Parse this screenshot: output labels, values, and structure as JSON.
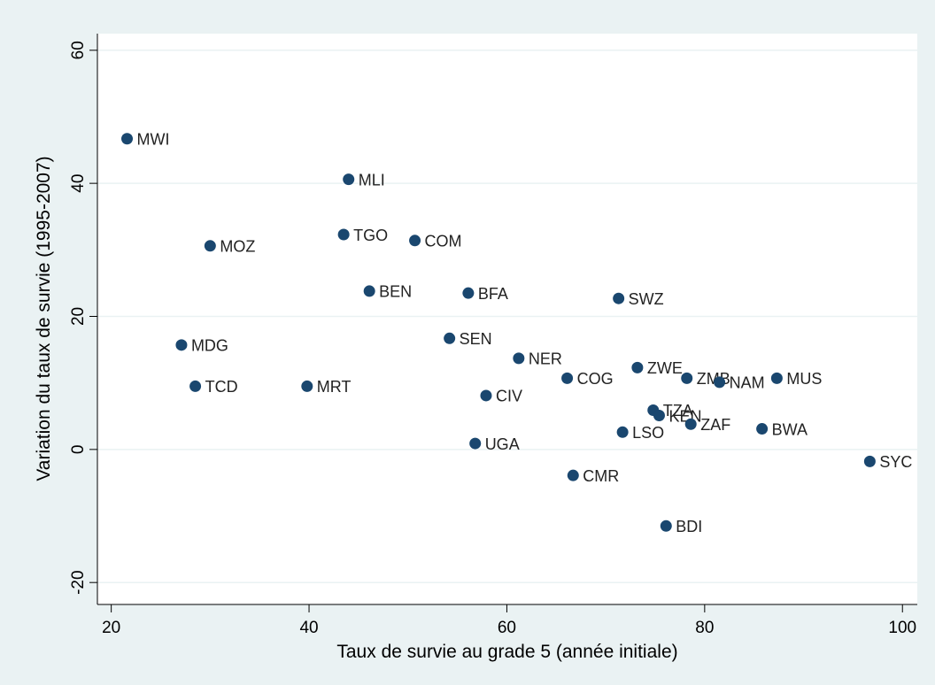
{
  "chart_data": {
    "type": "scatter",
    "x_label": "Taux de survie au grade 5 (année initiale)",
    "y_label": "Variation du taux de survie (1995-2007)",
    "labels": [
      "MWI",
      "MLI",
      "MOZ",
      "TGO",
      "COM",
      "BEN",
      "BFA",
      "SWZ",
      "MDG",
      "SEN",
      "NER",
      "TCD",
      "MRT",
      "COG",
      "ZWE",
      "ZMB",
      "NAM",
      "MUS",
      "CIV",
      "TZA",
      "KEN",
      "ZAF",
      "LSO",
      "BWA",
      "UGA",
      "SYC",
      "CMR",
      "BDI"
    ],
    "x": [
      21.6,
      44.0,
      30.0,
      43.5,
      50.7,
      46.1,
      56.1,
      71.3,
      27.1,
      54.2,
      61.2,
      28.5,
      39.8,
      66.1,
      73.2,
      78.2,
      81.5,
      87.3,
      57.9,
      74.8,
      75.4,
      78.6,
      71.7,
      85.8,
      56.8,
      96.7,
      66.7,
      76.1
    ],
    "values": [
      46.7,
      40.6,
      30.6,
      32.3,
      31.4,
      23.8,
      23.5,
      22.7,
      15.7,
      16.7,
      13.7,
      9.5,
      9.5,
      10.7,
      12.3,
      10.7,
      10.1,
      10.7,
      8.1,
      5.9,
      5.1,
      3.8,
      2.6,
      3.1,
      0.9,
      -1.8,
      -3.9,
      -11.5
    ],
    "color": "#1a476f",
    "xlim": [
      18.6,
      101.5
    ],
    "xticks": [
      20,
      40,
      60,
      80,
      100
    ],
    "ylim": [
      -23.3,
      62.5
    ],
    "yticks": [
      -20,
      0,
      20,
      40,
      60
    ],
    "grid": true
  }
}
